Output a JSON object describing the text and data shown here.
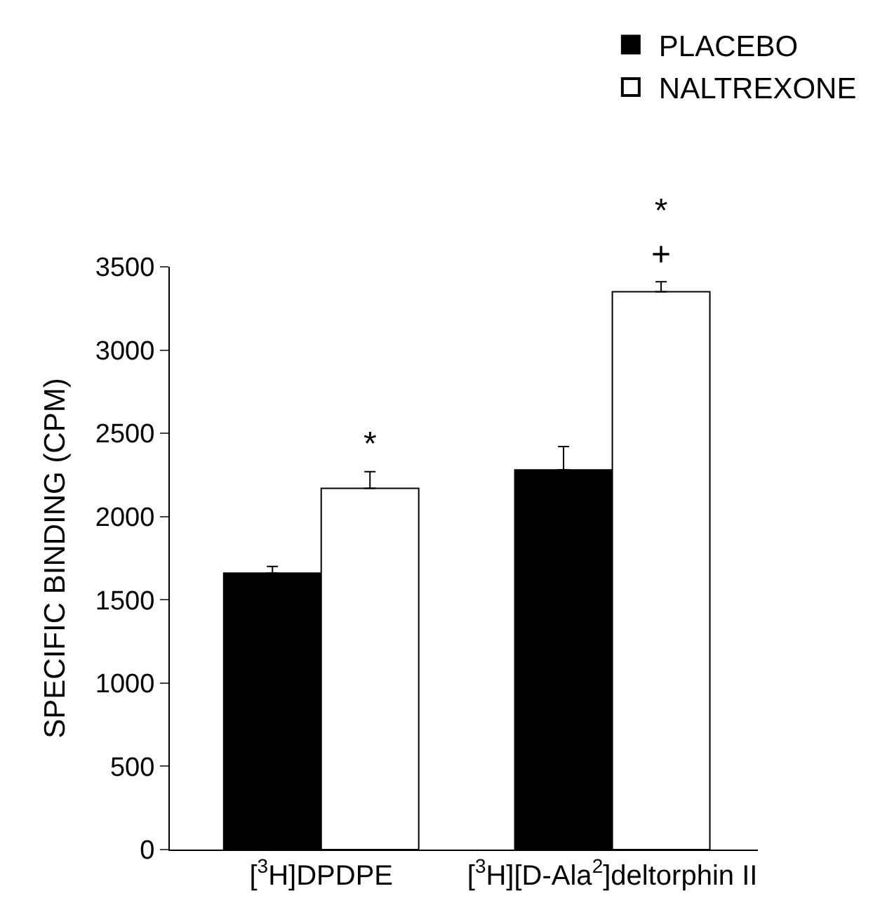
{
  "chart_data": {
    "type": "bar",
    "ylabel": "SPECIFIC BINDING (CPM)",
    "categories": [
      "[$^{3}$H]DPDPE",
      "[$^{3}$H][D-Ala$^{2}$]deltorphin II"
    ],
    "series": [
      {
        "name": "PLACEBO",
        "color": "#000000",
        "values": [
          1660,
          2280
        ],
        "errors": [
          [
            1660,
            1700
          ],
          [
            2280,
            2420
          ]
        ]
      },
      {
        "name": "NALTREXONE",
        "color": "#ffffff",
        "values": [
          2170,
          3350
        ],
        "errors": [
          [
            2170,
            2270
          ],
          [
            3350,
            3410
          ]
        ],
        "value_labels": [
          "*",
          "*\n+"
        ]
      }
    ],
    "ylim": [
      0,
      3500
    ],
    "yticks": [
      0,
      500,
      1000,
      1500,
      2000,
      2500,
      3000,
      3500
    ],
    "legend": "top right",
    "grid": false
  }
}
